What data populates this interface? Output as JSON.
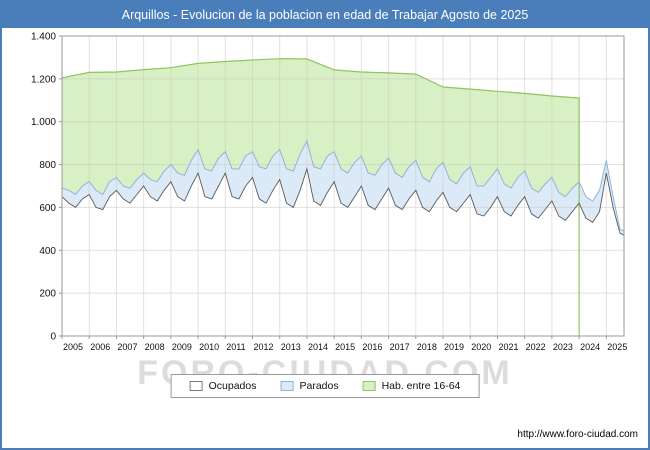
{
  "title": "Arquillos - Evolucion de la poblacion en edad de Trabajar Agosto de 2025",
  "watermark": "FORO-CIUDAD.COM",
  "footer_url": "http://www.foro-ciudad.com",
  "colors": {
    "titlebar": "#4a7ebb",
    "grid": "#c8c8c8",
    "plot_border": "#999999",
    "green_fill": "#d9f0c4",
    "green_stroke": "#8fc45e",
    "blue_fill": "#dceaf8",
    "blue_stroke": "#8fb4da",
    "white_fill": "#ffffff",
    "white_stroke": "#5a5a5a",
    "tick_text": "#111111"
  },
  "legend": [
    {
      "label": "Ocupados",
      "fill": "#ffffff",
      "stroke": "#7a7a7a"
    },
    {
      "label": "Parados",
      "fill": "#dceaf8",
      "stroke": "#8fb4da"
    },
    {
      "label": "Hab. entre 16-64",
      "fill": "#d9f0c4",
      "stroke": "#8fc45e"
    }
  ],
  "chart_data": {
    "type": "area",
    "title": "Arquillos - Evolucion de la poblacion en edad de Trabajar Agosto de 2025",
    "xlabel": "",
    "ylabel": "",
    "xlim": [
      2005,
      2025.65
    ],
    "ylim": [
      0,
      1400
    ],
    "grid": true,
    "legend_position": "bottom",
    "x_ticks": [
      2005,
      2006,
      2007,
      2008,
      2009,
      2010,
      2011,
      2012,
      2013,
      2014,
      2015,
      2016,
      2017,
      2018,
      2019,
      2020,
      2021,
      2022,
      2023,
      2024,
      2025
    ],
    "y_ticks": [
      0,
      200,
      400,
      600,
      800,
      1000,
      1200,
      1400
    ],
    "y_tick_labels": [
      "0",
      "200",
      "400",
      "600",
      "800",
      "1.000",
      "1.200",
      "1.400"
    ],
    "series": [
      {
        "name": "Hab. entre 16-64",
        "fill": "#d9f0c4",
        "stroke": "#8fc45e",
        "x": [
          2005,
          2006,
          2007,
          2008,
          2009,
          2010,
          2011,
          2012,
          2013,
          2014,
          2015,
          2016,
          2017,
          2018,
          2019,
          2020,
          2021,
          2022,
          2023,
          2024
        ],
        "values": [
          1205,
          1230,
          1232,
          1243,
          1252,
          1272,
          1281,
          1288,
          1294,
          1293,
          1242,
          1232,
          1228,
          1222,
          1162,
          1152,
          1142,
          1132,
          1120,
          1110
        ]
      },
      {
        "name": "Ocupados",
        "fill": "#ffffff",
        "stroke": "#5a5a5a",
        "x": [
          2005,
          2005.25,
          2005.5,
          2005.75,
          2006,
          2006.25,
          2006.5,
          2006.75,
          2007,
          2007.25,
          2007.5,
          2007.75,
          2008,
          2008.25,
          2008.5,
          2008.75,
          2009,
          2009.25,
          2009.5,
          2009.75,
          2010,
          2010.25,
          2010.5,
          2010.75,
          2011,
          2011.25,
          2011.5,
          2011.75,
          2012,
          2012.25,
          2012.5,
          2012.75,
          2013,
          2013.25,
          2013.5,
          2013.75,
          2014,
          2014.25,
          2014.5,
          2014.75,
          2015,
          2015.25,
          2015.5,
          2015.75,
          2016,
          2016.25,
          2016.5,
          2016.75,
          2017,
          2017.25,
          2017.5,
          2017.75,
          2018,
          2018.25,
          2018.5,
          2018.75,
          2019,
          2019.25,
          2019.5,
          2019.75,
          2020,
          2020.25,
          2020.5,
          2020.75,
          2021,
          2021.25,
          2021.5,
          2021.75,
          2022,
          2022.25,
          2022.5,
          2022.75,
          2023,
          2023.25,
          2023.5,
          2023.75,
          2024,
          2024.25,
          2024.5,
          2024.75,
          2025,
          2025.25,
          2025.5,
          2025.65
        ],
        "values": [
          650,
          620,
          600,
          640,
          660,
          600,
          590,
          650,
          680,
          640,
          620,
          660,
          700,
          650,
          630,
          680,
          720,
          650,
          630,
          700,
          760,
          650,
          640,
          700,
          760,
          650,
          640,
          700,
          740,
          640,
          620,
          680,
          730,
          620,
          600,
          680,
          780,
          630,
          610,
          670,
          720,
          620,
          600,
          650,
          700,
          610,
          590,
          640,
          690,
          610,
          590,
          640,
          680,
          600,
          580,
          630,
          670,
          600,
          580,
          620,
          660,
          570,
          560,
          600,
          650,
          580,
          560,
          610,
          650,
          570,
          550,
          590,
          630,
          560,
          540,
          580,
          620,
          550,
          530,
          580,
          760,
          600,
          480,
          470
        ]
      },
      {
        "name": "Parados",
        "fill": "#dceaf8",
        "stroke": "#8fb4da",
        "stacked_on": "Ocupados",
        "x": [
          2005,
          2005.25,
          2005.5,
          2005.75,
          2006,
          2006.25,
          2006.5,
          2006.75,
          2007,
          2007.25,
          2007.5,
          2007.75,
          2008,
          2008.25,
          2008.5,
          2008.75,
          2009,
          2009.25,
          2009.5,
          2009.75,
          2010,
          2010.25,
          2010.5,
          2010.75,
          2011,
          2011.25,
          2011.5,
          2011.75,
          2012,
          2012.25,
          2012.5,
          2012.75,
          2013,
          2013.25,
          2013.5,
          2013.75,
          2014,
          2014.25,
          2014.5,
          2014.75,
          2015,
          2015.25,
          2015.5,
          2015.75,
          2016,
          2016.25,
          2016.5,
          2016.75,
          2017,
          2017.25,
          2017.5,
          2017.75,
          2018,
          2018.25,
          2018.5,
          2018.75,
          2019,
          2019.25,
          2019.5,
          2019.75,
          2020,
          2020.25,
          2020.5,
          2020.75,
          2021,
          2021.25,
          2021.5,
          2021.75,
          2022,
          2022.25,
          2022.5,
          2022.75,
          2023,
          2023.25,
          2023.5,
          2023.75,
          2024,
          2024.25,
          2024.5,
          2024.75,
          2025,
          2025.25,
          2025.5,
          2025.65
        ],
        "values": [
          40,
          60,
          60,
          60,
          60,
          80,
          70,
          70,
          60,
          60,
          70,
          70,
          60,
          80,
          90,
          90,
          80,
          110,
          120,
          120,
          110,
          130,
          130,
          130,
          100,
          130,
          140,
          140,
          120,
          150,
          160,
          160,
          140,
          160,
          170,
          170,
          130,
          160,
          170,
          170,
          140,
          160,
          160,
          160,
          140,
          150,
          160,
          160,
          140,
          150,
          150,
          150,
          140,
          140,
          140,
          150,
          140,
          130,
          130,
          140,
          130,
          130,
          140,
          140,
          130,
          130,
          130,
          130,
          120,
          120,
          120,
          120,
          110,
          110,
          110,
          110,
          100,
          100,
          100,
          100,
          60,
          50,
          20,
          20
        ]
      }
    ]
  }
}
